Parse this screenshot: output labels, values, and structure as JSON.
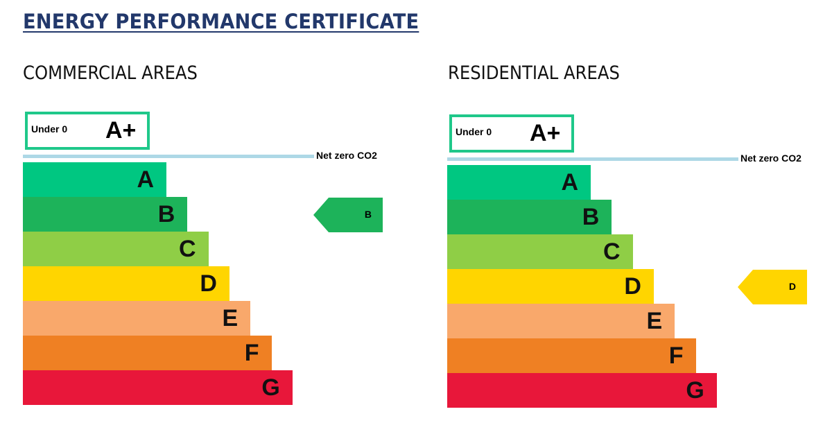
{
  "title": "ENERGY PERFORMANCE CERTIFICATE",
  "colors": {
    "A": "#00c781",
    "B": "#1db35a",
    "C": "#8fce46",
    "D": "#ffd500",
    "E": "#f9a86b",
    "F": "#ef8023",
    "G": "#e8173a",
    "box": "#1fc88a",
    "net_zero_line": "#add8e6"
  },
  "panels": [
    {
      "heading": "COMMERCIAL AREAS",
      "aplus_text": "Under 0",
      "aplus_grade": "A+",
      "net_zero_label": "Net zero CO2",
      "bands": [
        "A",
        "B",
        "C",
        "D",
        "E",
        "F",
        "G"
      ],
      "rating": "B"
    },
    {
      "heading": "RESIDENTIAL AREAS",
      "aplus_text": "Under 0",
      "aplus_grade": "A+",
      "net_zero_label": "Net zero CO2",
      "bands": [
        "A",
        "B",
        "C",
        "D",
        "E",
        "F",
        "G"
      ],
      "rating": "D"
    }
  ]
}
